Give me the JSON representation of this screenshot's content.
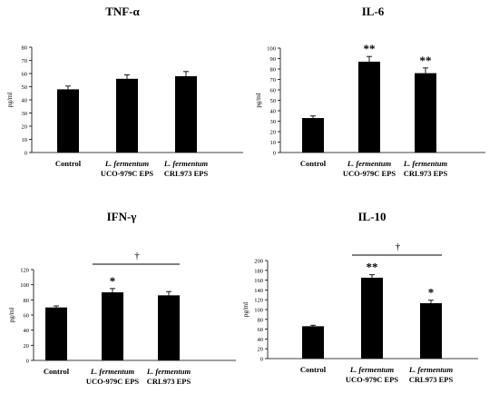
{
  "chart_data": [
    {
      "type": "bar",
      "title": "TNF-α",
      "ylabel": "pg/ml",
      "ylim": [
        0,
        80
      ],
      "yticks": [
        0,
        10,
        20,
        30,
        40,
        50,
        60,
        70,
        80
      ],
      "categories": [
        {
          "line1": "Control",
          "line2": ""
        },
        {
          "line1": "L. fermentum",
          "line2": "UCO-979C EPS"
        },
        {
          "line1": "L. fermentum",
          "line2": "CRL973 EPS"
        }
      ],
      "values": [
        48,
        56,
        58
      ],
      "errors": [
        2.5,
        3,
        3.5
      ],
      "marks": [
        "",
        "",
        ""
      ],
      "bracket": null
    },
    {
      "type": "bar",
      "title": "IL-6",
      "ylabel": "pg/ml",
      "ylim": [
        0,
        100
      ],
      "yticks": [
        0,
        10,
        20,
        30,
        40,
        50,
        60,
        70,
        80,
        90,
        100
      ],
      "categories": [
        {
          "line1": "Control",
          "line2": ""
        },
        {
          "line1": "L. fermentum",
          "line2": "UCO-979C EPS"
        },
        {
          "line1": "L. fermentum",
          "line2": "CRL973 EPS"
        }
      ],
      "values": [
        33,
        87,
        76
      ],
      "errors": [
        2,
        5,
        5
      ],
      "marks": [
        "",
        "**",
        "**"
      ],
      "bracket": null
    },
    {
      "type": "bar",
      "title": "IFN-γ",
      "ylabel": "pg/ml",
      "ylim": [
        0,
        120
      ],
      "yticks": [
        0,
        20,
        40,
        60,
        80,
        100,
        120
      ],
      "categories": [
        {
          "line1": "Control",
          "line2": ""
        },
        {
          "line1": "L. fermentum",
          "line2": "UCO-979C EPS"
        },
        {
          "line1": "L. fermentum",
          "line2": "CRL973 EPS"
        }
      ],
      "values": [
        70,
        90,
        86
      ],
      "errors": [
        2,
        5,
        5
      ],
      "marks": [
        "",
        "*",
        ""
      ],
      "bracket": {
        "from": 1,
        "to": 2,
        "symbol": "†"
      }
    },
    {
      "type": "bar",
      "title": "IL-10",
      "ylabel": "pg/ml",
      "ylim": [
        0,
        200
      ],
      "yticks": [
        0,
        20,
        40,
        60,
        80,
        100,
        120,
        140,
        160,
        180,
        200
      ],
      "categories": [
        {
          "line1": "Control",
          "line2": ""
        },
        {
          "line1": "L. fermentum",
          "line2": "UCO-979C EPS"
        },
        {
          "line1": "L. fermentum",
          "line2": "CRL973 EPS"
        }
      ],
      "values": [
        66,
        165,
        113
      ],
      "errors": [
        2,
        6,
        6
      ],
      "marks": [
        "",
        "**",
        "*"
      ],
      "bracket": {
        "from": 1,
        "to": 2,
        "symbol": "†"
      }
    }
  ]
}
